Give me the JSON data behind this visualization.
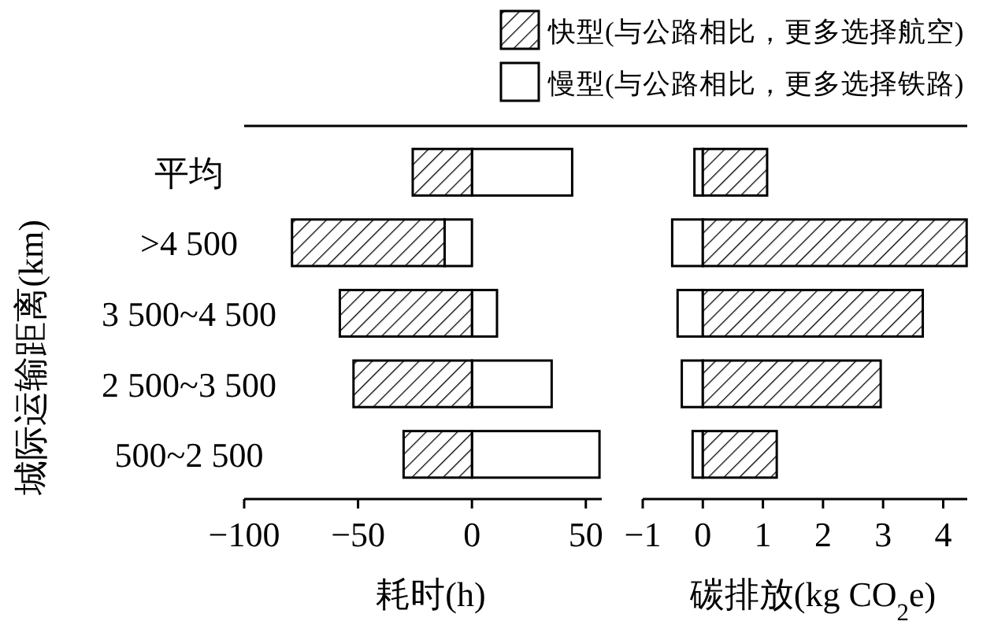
{
  "chart_data": [
    {
      "type": "bar",
      "orientation": "horizontal",
      "stacked": true,
      "ylabel": "城际运输距离(km)",
      "xlabel": "耗时(h)",
      "categories": [
        "平均",
        ">4 500",
        "3 500~4 500",
        "2 500~3 500",
        "500~2 500"
      ],
      "legend": "top",
      "xlim": [
        -100,
        57
      ],
      "xticks": [
        {
          "value": -100,
          "label": "−100"
        },
        {
          "value": -50,
          "label": "−50"
        },
        0,
        50
      ],
      "series": [
        {
          "name": "慢型(与公路相比，更多选择铁路)",
          "color": "#ffffff",
          "values": [
            44,
            -12,
            11,
            35,
            56
          ]
        },
        {
          "name": "快型(与公路相比，更多选择航空)",
          "color": "#000000",
          "values": [
            -26,
            -67,
            -58,
            -52,
            -30
          ]
        }
      ]
    },
    {
      "type": "bar",
      "orientation": "horizontal",
      "stacked": true,
      "xlabel": "碳排放(kg CO$_{2}$e)",
      "categories": [
        null,
        null,
        null,
        null,
        null
      ],
      "xlim": [
        -1,
        4.4
      ],
      "xticks": [
        {
          "value": -1,
          "label": "−1"
        },
        0,
        1,
        2,
        3,
        4
      ],
      "series": [
        {
          "color": "#ffffff",
          "values": [
            -0.14,
            -0.51,
            -0.42,
            -0.35,
            -0.17
          ]
        },
        {
          "color": "#000000",
          "values": [
            1.07,
            4.39,
            3.66,
            2.96,
            1.23
          ]
        }
      ]
    }
  ]
}
